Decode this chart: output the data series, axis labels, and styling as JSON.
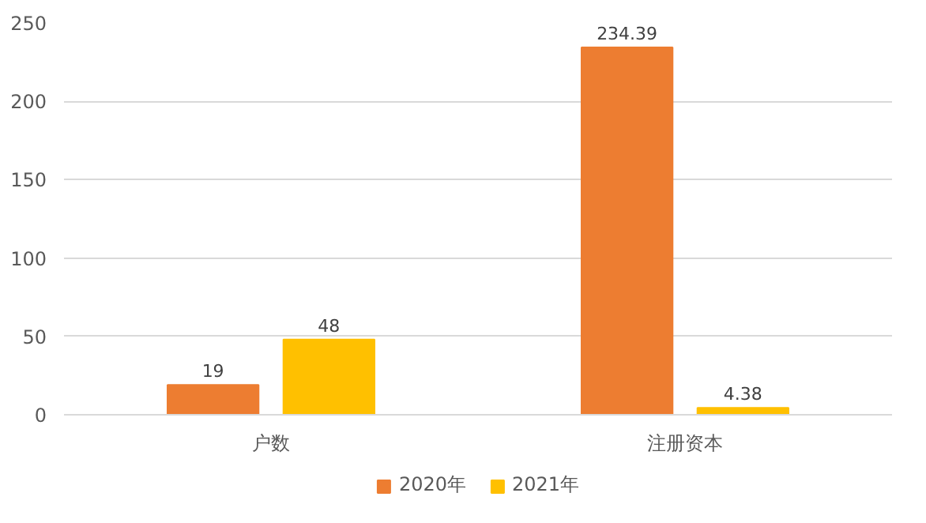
{
  "chart_data": {
    "type": "bar",
    "categories": [
      "户数",
      "注册资本"
    ],
    "series": [
      {
        "name": "2020年",
        "color": "#ed7d31",
        "values": [
          19,
          234.39
        ]
      },
      {
        "name": "2021年",
        "color": "#ffc000",
        "values": [
          48,
          4.38
        ]
      }
    ],
    "ylim": [
      0,
      250
    ],
    "yticks": [
      0,
      50,
      100,
      150,
      200,
      250
    ],
    "grid": "y",
    "legend": "bottom",
    "data_labels": true
  }
}
